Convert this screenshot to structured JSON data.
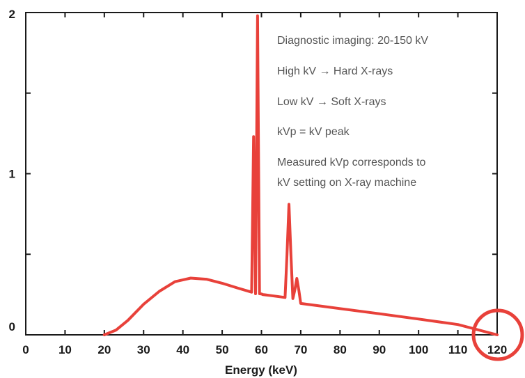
{
  "chart_data": {
    "type": "line",
    "title": "",
    "xlabel": "Energy (keV)",
    "ylabel": "",
    "xlim": [
      0,
      120
    ],
    "ylim": [
      0,
      2
    ],
    "grid": false,
    "x_ticks": [
      0,
      10,
      20,
      30,
      40,
      50,
      60,
      70,
      80,
      90,
      100,
      110,
      120
    ],
    "x_tick_labels": [
      "0",
      "10",
      "20",
      "30",
      "40",
      "50",
      "60",
      "70",
      "80",
      "90",
      "100",
      "110",
      "120"
    ],
    "y_major_ticks": [
      0,
      1,
      2
    ],
    "y_tick_labels": [
      "0",
      "1",
      "2"
    ],
    "series": [
      {
        "color": "#e8413a",
        "x": [
          20,
          23,
          26,
          30,
          34,
          38,
          42,
          46,
          50,
          54,
          57.5,
          58,
          58.5,
          59,
          59.5,
          60,
          60.3,
          62,
          66,
          66.5,
          67,
          67.5,
          68,
          68.5,
          69,
          69.5,
          70,
          80,
          90,
          100,
          110,
          120
        ],
        "y": [
          0,
          0.03,
          0.09,
          0.19,
          0.27,
          0.33,
          0.352,
          0.345,
          0.32,
          0.29,
          0.265,
          1.23,
          0.255,
          1.98,
          0.255,
          0.254,
          0.25,
          0.245,
          0.232,
          0.5,
          0.81,
          0.5,
          0.225,
          0.28,
          0.35,
          0.28,
          0.195,
          0.163,
          0.131,
          0.098,
          0.064,
          0
        ]
      }
    ],
    "annotations": [
      "Diagnostic imaging: 20-150 kV",
      "High kV → Hard X-rays",
      "Low kV → Soft X-rays",
      "kVp = kV peak",
      "Measured kVp corresponds to",
      "kV setting on X-ray machine"
    ],
    "highlight": {
      "x": 120,
      "shape": "circle",
      "color": "#e8413a"
    }
  }
}
